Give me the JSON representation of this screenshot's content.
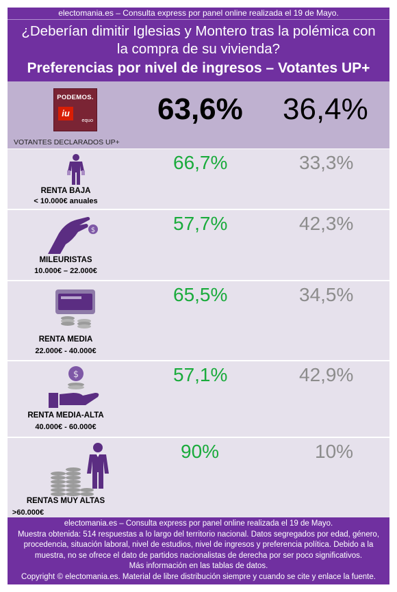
{
  "header": {
    "topline": "electomania.es – Consulta express por panel online realizada el 19 de Mayo.",
    "question_line1": "¿Deberían dimitir Iglesias y Montero tras la polémica con",
    "question_line2": "la compra de su vivienda?",
    "subtitle": "Preferencias por nivel de ingresos – Votantes UP+"
  },
  "logo": {
    "podemos": "PODEMOS.",
    "iu": "iu",
    "equo": "equo"
  },
  "colors": {
    "purple": "#7030a0",
    "yes": "#1aab3c",
    "no": "#8c8c8c",
    "total_bg": "#bfb1d0",
    "row_bg": "#e6e1ec"
  },
  "chart_data": {
    "type": "table",
    "title": "Preferencias por nivel de ingresos – Votantes UP+",
    "total": {
      "label": "VOTANTES DECLARADOS UP+",
      "yes": "63,6%",
      "no": "36,4%"
    },
    "rows": [
      {
        "name": "RENTA BAJA",
        "range": "< 10.000€ anuales",
        "yes": "66,7%",
        "no": "33,3%",
        "icon": "empty-pockets-person-icon"
      },
      {
        "name": "MILEURISTAS",
        "range": "10.000€ – 22.000€",
        "yes": "57,7%",
        "no": "42,3%",
        "icon": "hand-coin-icon"
      },
      {
        "name": "RENTA MEDIA",
        "range": "22.000€ - 40.000€",
        "yes": "65,5%",
        "no": "34,5%",
        "icon": "wallet-coins-icon"
      },
      {
        "name": "RENTA MEDIA-ALTA",
        "range": "40.000€ - 60.000€",
        "yes": "57,1%",
        "no": "42,9%",
        "icon": "hand-dollar-coin-icon"
      },
      {
        "name": "RENTAS MUY ALTAS",
        "range": ">60.000€",
        "yes": "90%",
        "no": "10%",
        "icon": "businessman-coin-stacks-icon"
      }
    ]
  },
  "footer": {
    "line1": "electomania.es – Consulta express por panel online realizada el 19 de Mayo.",
    "line2": "Muestra obtenida: 514 respuestas a lo largo del territorio nacional. Datos segregados por edad, género,",
    "line3": "procedencia, situación laboral, nivel de estudios, nivel de ingresos y preferencia política. Debido a la",
    "line4": "muestra, no se ofrece el dato de partidos nacionalistas de derecha por ser poco significativos.",
    "line5": "Más información en las tablas de datos.",
    "line6": "Copyright © electomania.es. Material de libre distribución siempre y cuando se cite y enlace la fuente."
  }
}
